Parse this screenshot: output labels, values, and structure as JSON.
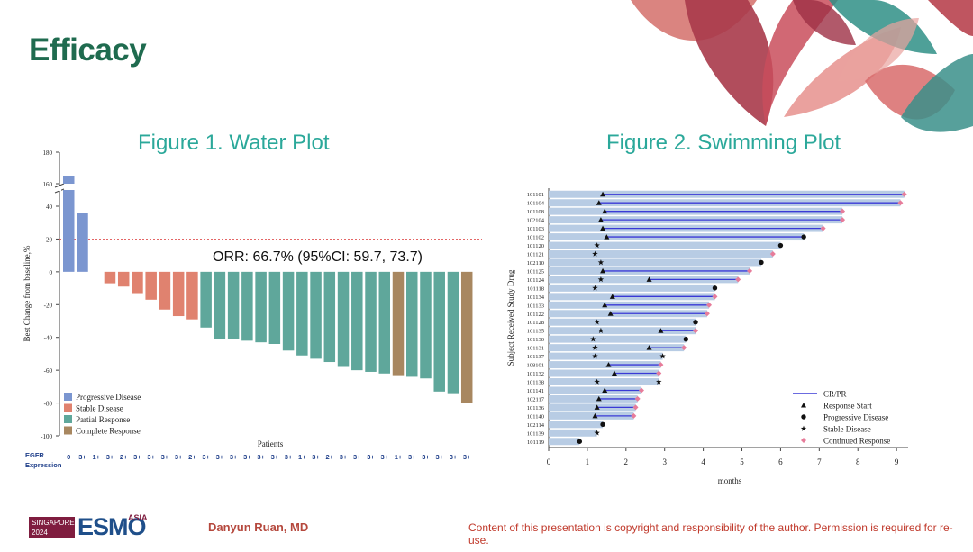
{
  "slide": {
    "title": "Efficacy",
    "author": "Danyun Ruan, MD",
    "copyright": "Content of this presentation is copyright and responsibility of the author. Permission is required for re-use.",
    "logo": {
      "line1": "SINGAPORE",
      "line2": "2024",
      "main": "ESMO",
      "sup": "ASIA"
    }
  },
  "colors": {
    "progressive": "#7b96d0",
    "stable": "#e0826f",
    "partial": "#5fa79b",
    "complete": "#a88760",
    "swim_bar": "#b8cce4",
    "crpr_line": "#3a3ad6",
    "continued": "#e77c9a",
    "title_green": "#1f6b4f",
    "fig_title": "#2ba89a"
  },
  "chart_data": [
    {
      "type": "bar",
      "title": "Figure 1. Water Plot",
      "xlabel": "Patients",
      "ylabel": "Best Change from baseline,%",
      "ylim": [
        -100,
        180
      ],
      "axis_break": [
        40,
        160
      ],
      "yticks": [
        180,
        160,
        40,
        20,
        0,
        -20,
        -40,
        -60,
        -80,
        -100
      ],
      "reference_lines": [
        20,
        -30
      ],
      "annotation": "ORR: 66.7% (95%CI: 59.7, 73.7)",
      "row_label": "EGFR\nExpression",
      "legend": [
        {
          "key": "progressive",
          "label": "Progressive Disease"
        },
        {
          "key": "stable",
          "label": "Stable Disease"
        },
        {
          "key": "partial",
          "label": "Partial Response"
        },
        {
          "key": "complete",
          "label": "Complete Response"
        }
      ],
      "bars": [
        {
          "value": 165,
          "cat": "progressive",
          "egfr": "0"
        },
        {
          "value": 36,
          "cat": "progressive",
          "egfr": "3+"
        },
        {
          "value": 0,
          "cat": "progressive",
          "egfr": "1+"
        },
        {
          "value": -7,
          "cat": "stable",
          "egfr": "3+"
        },
        {
          "value": -9,
          "cat": "stable",
          "egfr": "2+"
        },
        {
          "value": -13,
          "cat": "stable",
          "egfr": "3+"
        },
        {
          "value": -17,
          "cat": "stable",
          "egfr": "3+"
        },
        {
          "value": -23,
          "cat": "stable",
          "egfr": "3+"
        },
        {
          "value": -27,
          "cat": "stable",
          "egfr": "3+"
        },
        {
          "value": -29,
          "cat": "stable",
          "egfr": "2+"
        },
        {
          "value": -34,
          "cat": "partial",
          "egfr": "3+"
        },
        {
          "value": -41,
          "cat": "partial",
          "egfr": "3+"
        },
        {
          "value": -41,
          "cat": "partial",
          "egfr": "3+"
        },
        {
          "value": -42,
          "cat": "partial",
          "egfr": "3+"
        },
        {
          "value": -43,
          "cat": "partial",
          "egfr": "3+"
        },
        {
          "value": -44,
          "cat": "partial",
          "egfr": "3+"
        },
        {
          "value": -48,
          "cat": "partial",
          "egfr": "3+"
        },
        {
          "value": -51,
          "cat": "partial",
          "egfr": "1+"
        },
        {
          "value": -53,
          "cat": "partial",
          "egfr": "3+"
        },
        {
          "value": -55,
          "cat": "partial",
          "egfr": "2+"
        },
        {
          "value": -58,
          "cat": "partial",
          "egfr": "3+"
        },
        {
          "value": -60,
          "cat": "partial",
          "egfr": "3+"
        },
        {
          "value": -61,
          "cat": "partial",
          "egfr": "3+"
        },
        {
          "value": -62,
          "cat": "partial",
          "egfr": "3+"
        },
        {
          "value": -63,
          "cat": "complete",
          "egfr": "1+"
        },
        {
          "value": -64,
          "cat": "partial",
          "egfr": "3+"
        },
        {
          "value": -65,
          "cat": "partial",
          "egfr": "3+"
        },
        {
          "value": -73,
          "cat": "partial",
          "egfr": "3+"
        },
        {
          "value": -74,
          "cat": "partial",
          "egfr": "3+"
        },
        {
          "value": -80,
          "cat": "complete",
          "egfr": "3+"
        }
      ]
    },
    {
      "type": "swimmer",
      "title": "Figure 2. Swimming Plot",
      "xlabel": "months",
      "ylabel": "Subject Received Study Drug",
      "xlim": [
        0,
        9.3
      ],
      "xticks": [
        0,
        1,
        2,
        3,
        4,
        5,
        6,
        7,
        8,
        9
      ],
      "legend": [
        {
          "key": "crpr",
          "label": "CR/PR"
        },
        {
          "key": "start",
          "label": "Response Start"
        },
        {
          "key": "pd",
          "label": "Progressive Disease"
        },
        {
          "key": "sd",
          "label": "Stable Disease"
        },
        {
          "key": "cont",
          "label": "Continued Response"
        }
      ],
      "subjects": [
        {
          "id": "101101",
          "end": 9.2,
          "resp_start": 1.4,
          "resp_end": 9.2,
          "continued": true
        },
        {
          "id": "101104",
          "end": 9.1,
          "resp_start": 1.3,
          "resp_end": 9.1,
          "continued": true
        },
        {
          "id": "101108",
          "end": 7.6,
          "resp_start": 1.45,
          "resp_end": 7.6,
          "continued": true
        },
        {
          "id": "102104",
          "end": 7.6,
          "resp_start": 1.35,
          "resp_end": 7.6,
          "continued": true
        },
        {
          "id": "101103",
          "end": 7.1,
          "resp_start": 1.4,
          "resp_end": 7.1,
          "continued": true
        },
        {
          "id": "101102",
          "end": 6.6,
          "resp_start": 1.5,
          "resp_end": 6.6,
          "pd": 6.6
        },
        {
          "id": "101120",
          "end": 6.0,
          "sd": 1.25,
          "pd": 6.0
        },
        {
          "id": "101121",
          "end": 5.8,
          "sd": 1.2,
          "cont_at": 5.8
        },
        {
          "id": "102110",
          "end": 5.5,
          "sd": 1.35,
          "pd": 5.5
        },
        {
          "id": "101125",
          "end": 5.2,
          "resp_start": 1.4,
          "resp_end": 5.2,
          "continued": true
        },
        {
          "id": "101124",
          "end": 4.9,
          "resp_start": 2.6,
          "resp_end": 4.9,
          "sd": 1.35,
          "continued": true
        },
        {
          "id": "101118",
          "end": 4.3,
          "sd": 1.2,
          "pd": 4.3
        },
        {
          "id": "101134",
          "end": 4.3,
          "resp_start": 1.65,
          "resp_end": 4.3,
          "continued": true
        },
        {
          "id": "101133",
          "end": 4.15,
          "resp_start": 1.45,
          "resp_end": 4.15,
          "continued": true
        },
        {
          "id": "101122",
          "end": 4.1,
          "resp_start": 1.6,
          "resp_end": 4.1,
          "continued": true
        },
        {
          "id": "101128",
          "end": 3.8,
          "sd": 1.25,
          "pd": 3.8
        },
        {
          "id": "101135",
          "end": 3.8,
          "resp_start": 2.9,
          "resp_end": 3.8,
          "sd": 1.35,
          "continued": true
        },
        {
          "id": "101130",
          "end": 3.55,
          "sd": 1.15,
          "pd": 3.55
        },
        {
          "id": "101131",
          "end": 3.5,
          "resp_start": 2.6,
          "resp_end": 3.5,
          "sd": 1.2,
          "continued": true
        },
        {
          "id": "101137",
          "end": 2.95,
          "sd": 1.2,
          "sd2": 2.95
        },
        {
          "id": "108101",
          "end": 2.9,
          "resp_start": 1.55,
          "resp_end": 2.9,
          "continued": true
        },
        {
          "id": "101132",
          "end": 2.85,
          "resp_start": 1.7,
          "resp_end": 2.85,
          "continued": true
        },
        {
          "id": "101138",
          "end": 2.85,
          "sd": 1.25,
          "sd2": 2.85
        },
        {
          "id": "101141",
          "end": 2.4,
          "resp_start": 1.45,
          "resp_end": 2.4,
          "continued": true
        },
        {
          "id": "102117",
          "end": 2.3,
          "resp_start": 1.3,
          "resp_end": 2.3,
          "continued": true
        },
        {
          "id": "101136",
          "end": 2.25,
          "resp_start": 1.25,
          "resp_end": 2.25,
          "continued": true
        },
        {
          "id": "101140",
          "end": 2.2,
          "resp_start": 1.2,
          "resp_end": 2.2,
          "continued": true
        },
        {
          "id": "102114",
          "end": 1.4,
          "pd": 1.4
        },
        {
          "id": "101139",
          "end": 1.25,
          "sd": 1.25
        },
        {
          "id": "101119",
          "end": 0.8,
          "pd": 0.8
        }
      ]
    }
  ]
}
